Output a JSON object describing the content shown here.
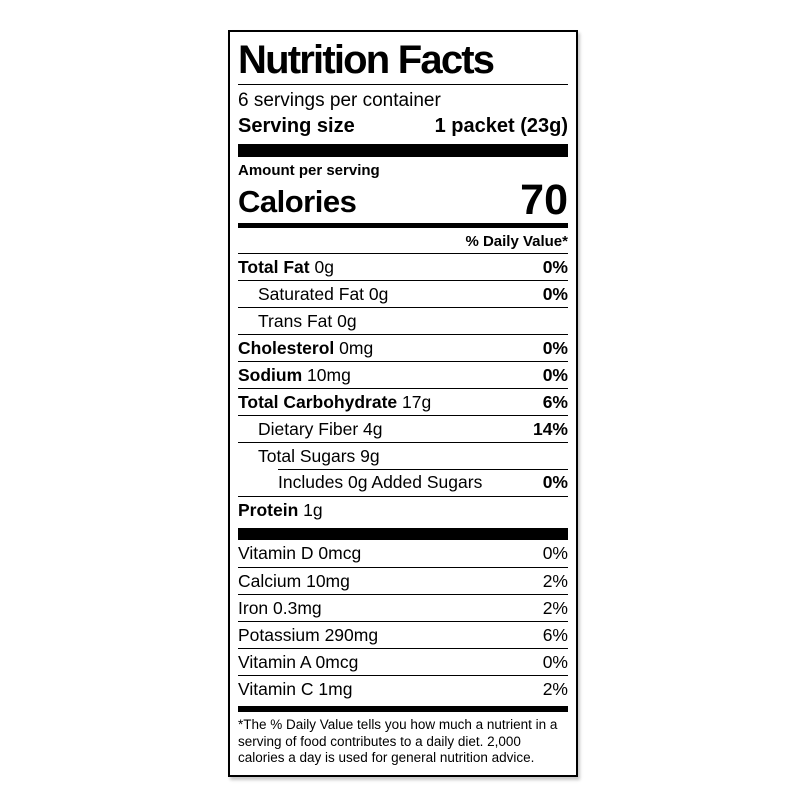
{
  "label": {
    "title": "Nutrition Facts",
    "servings_per_container": "6 servings per container",
    "serving_size_label": "Serving size",
    "serving_size_value": "1 packet (23g)",
    "amount_per_serving": "Amount per serving",
    "calories_label": "Calories",
    "calories_value": "70",
    "daily_value_header": "% Daily Value*",
    "rows": [
      {
        "name": "Total Fat",
        "amount": "0g",
        "dv": "0%",
        "bold": true,
        "dv_bold": true,
        "indent": 0
      },
      {
        "name": "Saturated Fat",
        "amount": "0g",
        "dv": "0%",
        "bold": false,
        "dv_bold": true,
        "indent": 1
      },
      {
        "name": "Trans Fat",
        "amount": "0g",
        "dv": "",
        "bold": false,
        "dv_bold": false,
        "indent": 1
      },
      {
        "name": "Cholesterol",
        "amount": "0mg",
        "dv": "0%",
        "bold": true,
        "dv_bold": true,
        "indent": 0
      },
      {
        "name": "Sodium",
        "amount": "10mg",
        "dv": "0%",
        "bold": true,
        "dv_bold": true,
        "indent": 0
      },
      {
        "name": "Total Carbohydrate",
        "amount": "17g",
        "dv": "6%",
        "bold": true,
        "dv_bold": true,
        "indent": 0
      },
      {
        "name": "Dietary Fiber",
        "amount": "4g",
        "dv": "14%",
        "bold": false,
        "dv_bold": true,
        "indent": 1
      },
      {
        "name": "Total Sugars",
        "amount": "9g",
        "dv": "",
        "bold": false,
        "dv_bold": false,
        "indent": 1
      },
      {
        "name": "Includes 0g Added Sugars",
        "amount": "",
        "dv": "0%",
        "bold": false,
        "dv_bold": true,
        "indent": 2,
        "partial_separator": true
      },
      {
        "name": "Protein",
        "amount": "1g",
        "dv": "",
        "bold": true,
        "dv_bold": false,
        "indent": 0
      }
    ],
    "micronutrients": [
      {
        "name": "Vitamin D",
        "amount": "0mcg",
        "dv": "0%"
      },
      {
        "name": "Calcium",
        "amount": "10mg",
        "dv": "2%"
      },
      {
        "name": "Iron",
        "amount": "0.3mg",
        "dv": "2%"
      },
      {
        "name": "Potassium",
        "amount": "290mg",
        "dv": "6%"
      },
      {
        "name": "Vitamin A",
        "amount": "0mcg",
        "dv": "0%"
      },
      {
        "name": "Vitamin C",
        "amount": "1mg",
        "dv": "2%"
      }
    ],
    "footnote": "*The % Daily Value tells you how much a nutrient in a serving of food contributes to a daily diet. 2,000 calories a day is used for general nutrition advice.",
    "colors": {
      "text": "#000000",
      "background": "#ffffff",
      "rule": "#000000"
    }
  }
}
